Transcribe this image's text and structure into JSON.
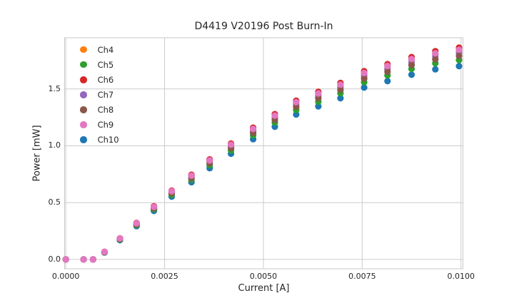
{
  "figure": {
    "background": "#ffffff",
    "grid_color": "#cccccc",
    "spine_color": "#c9c9c9",
    "text_color": "#262626"
  },
  "chart_data": {
    "type": "scatter",
    "title": "D4419 V20196 Post Burn-In",
    "xlabel": "Current [A]",
    "ylabel": "Power [mW]",
    "xlim": [
      -3e-05,
      0.01005
    ],
    "ylim": [
      -0.082,
      1.95
    ],
    "grid": true,
    "legend_position": "upper left",
    "marker_radius": 4.6,
    "x_ticks": {
      "values": [
        0.0,
        0.0025,
        0.005,
        0.0075,
        0.01
      ],
      "labels": [
        "0.0000",
        "0.0025",
        "0.0050",
        "0.0075",
        "0.0100"
      ]
    },
    "y_ticks": {
      "values": [
        0.0,
        0.5,
        1.0,
        1.5
      ],
      "labels": [
        "0.0",
        "0.5",
        "1.0",
        "1.5"
      ]
    },
    "x": [
      0.0,
      0.00045,
      0.00069,
      0.00098,
      0.00137,
      0.00179,
      0.00223,
      0.00268,
      0.00318,
      0.00364,
      0.00418,
      0.00474,
      0.00529,
      0.00583,
      0.00639,
      0.00695,
      0.00755,
      0.00814,
      0.00875,
      0.00935,
      0.00995
    ],
    "series": [
      {
        "name": "Ch4",
        "color": "#ff7f0e",
        "values": [
          0.0,
          0.0,
          0.0,
          0.066,
          0.184,
          0.317,
          0.462,
          0.598,
          0.736,
          0.869,
          1.007,
          1.145,
          1.262,
          1.38,
          1.456,
          1.533,
          1.635,
          1.697,
          1.758,
          1.809,
          1.84
        ]
      },
      {
        "name": "Ch5",
        "color": "#2ca02c",
        "values": [
          0.0,
          0.0,
          0.0,
          0.063,
          0.176,
          0.302,
          0.441,
          0.57,
          0.702,
          0.829,
          0.96,
          1.092,
          1.204,
          1.316,
          1.389,
          1.463,
          1.56,
          1.619,
          1.677,
          1.726,
          1.755
        ]
      },
      {
        "name": "Ch6",
        "color": "#d62728",
        "values": [
          0.0,
          0.0,
          0.0,
          0.067,
          0.186,
          0.321,
          0.468,
          0.605,
          0.745,
          0.88,
          1.019,
          1.159,
          1.278,
          1.397,
          1.475,
          1.553,
          1.656,
          1.718,
          1.78,
          1.832,
          1.863
        ]
      },
      {
        "name": "Ch7",
        "color": "#9467bd",
        "values": [
          0.0,
          0.0,
          0.0,
          0.066,
          0.182,
          0.313,
          0.457,
          0.591,
          0.727,
          0.859,
          0.995,
          1.131,
          1.247,
          1.364,
          1.439,
          1.515,
          1.616,
          1.677,
          1.737,
          1.788,
          1.818
        ]
      },
      {
        "name": "Ch8",
        "color": "#8c564b",
        "values": [
          0.0,
          0.0,
          0.0,
          0.065,
          0.179,
          0.308,
          0.45,
          0.582,
          0.716,
          0.846,
          0.98,
          1.114,
          1.229,
          1.343,
          1.418,
          1.493,
          1.592,
          1.652,
          1.711,
          1.761,
          1.791
        ]
      },
      {
        "name": "Ch9",
        "color": "#e377c2",
        "values": [
          0.0,
          0.0,
          0.0,
          0.067,
          0.185,
          0.318,
          0.463,
          0.6,
          0.738,
          0.871,
          1.01,
          1.148,
          1.266,
          1.384,
          1.461,
          1.538,
          1.64,
          1.702,
          1.763,
          1.814,
          1.845
        ]
      },
      {
        "name": "Ch10",
        "color": "#1f77b4",
        "values": [
          0.0,
          0.0,
          0.0,
          0.061,
          0.17,
          0.293,
          0.427,
          0.553,
          0.68,
          0.803,
          0.931,
          1.058,
          1.167,
          1.276,
          1.347,
          1.418,
          1.512,
          1.569,
          1.625,
          1.673,
          1.701
        ]
      }
    ],
    "draw_order": [
      "Ch10",
      "Ch4",
      "Ch5",
      "Ch6",
      "Ch7",
      "Ch8",
      "Ch9"
    ]
  }
}
